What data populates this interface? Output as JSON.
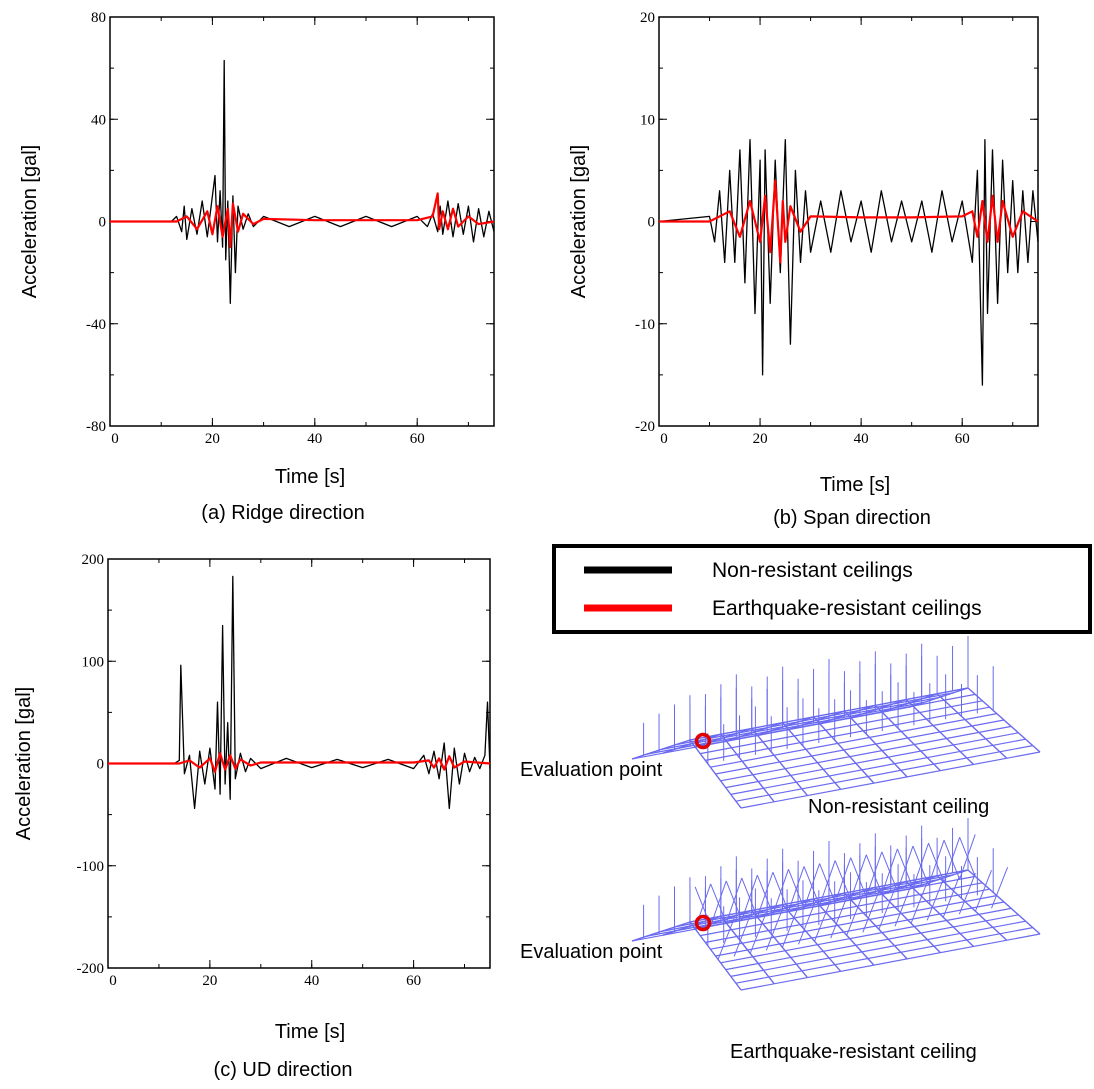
{
  "colors": {
    "non_resistant": "#000000",
    "resistant": "#ff0000",
    "model": "#6a6af0",
    "marker": "#e00000"
  },
  "chart_data": [
    {
      "type": "line",
      "caption": "(a) Ridge direction",
      "xlabel": "Time [s]",
      "ylabel": "Acceleration [gal]",
      "xlim": [
        0,
        75
      ],
      "ylim": [
        -80,
        80
      ],
      "xticks": [
        0,
        20,
        40,
        60
      ],
      "yticks": [
        -80,
        -40,
        0,
        40,
        80
      ],
      "series": [
        {
          "name": "Non-resistant ceilings",
          "color": "#000000",
          "x": [
            0,
            12,
            13,
            14,
            14.5,
            15,
            16,
            17,
            18,
            19,
            20,
            20.5,
            21,
            21.5,
            22,
            22.3,
            22.6,
            23,
            23.5,
            24,
            24.5,
            25,
            26,
            27,
            28,
            30,
            35,
            40,
            45,
            50,
            55,
            60,
            62,
            63,
            64,
            64.5,
            65,
            66,
            67,
            68,
            69,
            70,
            71,
            72,
            73,
            74,
            75
          ],
          "y": [
            0,
            0,
            2,
            -4,
            6,
            -7,
            5,
            -5,
            8,
            -6,
            10,
            18,
            -8,
            12,
            -10,
            63,
            -15,
            8,
            -32,
            10,
            -20,
            6,
            -3,
            3,
            -2,
            2,
            -2,
            2,
            -2,
            2,
            -2,
            2,
            -2,
            3,
            -4,
            6,
            -5,
            8,
            -6,
            7,
            -5,
            6,
            -8,
            5,
            -6,
            4,
            -4
          ]
        },
        {
          "name": "Earthquake-resistant ceilings",
          "color": "#ff0000",
          "x": [
            0,
            13,
            15,
            17,
            19,
            20,
            21,
            22,
            23,
            23.5,
            24,
            25,
            26,
            28,
            30,
            40,
            50,
            60,
            63,
            64,
            64.3,
            65,
            66,
            67,
            68,
            70,
            72,
            75
          ],
          "y": [
            0,
            0,
            2,
            -3,
            4,
            -5,
            6,
            -6,
            5,
            -10,
            7,
            -4,
            3,
            -1,
            1,
            0.5,
            0.5,
            0.5,
            2,
            11,
            -3,
            4,
            -3,
            5,
            -2,
            2,
            -1,
            0
          ]
        }
      ]
    },
    {
      "type": "line",
      "caption": "(b) Span direction",
      "xlabel": "Time [s]",
      "ylabel": "Acceleration [gal]",
      "xlim": [
        0,
        75
      ],
      "ylim": [
        -20,
        20
      ],
      "xticks": [
        0,
        20,
        40,
        60
      ],
      "yticks": [
        -20,
        -10,
        0,
        10,
        20
      ],
      "series": [
        {
          "name": "Non-resistant ceilings",
          "color": "#000000",
          "x": [
            0,
            10,
            11,
            12,
            13,
            14,
            15,
            16,
            17,
            18,
            19,
            20,
            20.5,
            21,
            22,
            23,
            24,
            25,
            26,
            27,
            28,
            29,
            30,
            32,
            34,
            36,
            38,
            40,
            42,
            44,
            46,
            48,
            50,
            52,
            54,
            56,
            58,
            60,
            62,
            63,
            64,
            64.5,
            65,
            66,
            67,
            68,
            69,
            70,
            71,
            72,
            73,
            74,
            75
          ],
          "y": [
            0,
            0.5,
            -2,
            3,
            -4,
            5,
            -4,
            7,
            -6,
            8,
            -9,
            6,
            -15,
            7,
            -8,
            6,
            -5,
            8,
            -12,
            5,
            -4,
            3,
            -3,
            2,
            -3,
            3,
            -2,
            2,
            -3,
            3,
            -2,
            2,
            -2,
            2,
            -3,
            3,
            -2,
            2,
            -4,
            5,
            -16,
            8,
            -9,
            7,
            -8,
            6,
            -5,
            4,
            -5,
            3,
            -4,
            3,
            -2
          ]
        },
        {
          "name": "Earthquake-resistant ceilings",
          "color": "#ff0000",
          "x": [
            0,
            10,
            14,
            16,
            18,
            20,
            21,
            22,
            23,
            24,
            24.5,
            25,
            26,
            28,
            30,
            40,
            50,
            60,
            62,
            63,
            64,
            65,
            66,
            67,
            68,
            70,
            72,
            75
          ],
          "y": [
            0,
            0,
            1,
            -1.5,
            2,
            -2,
            2.5,
            -3,
            4,
            -4,
            2,
            -2,
            1.5,
            -1,
            0.5,
            0.4,
            0.4,
            0.5,
            1,
            -1.5,
            2,
            -2,
            2.5,
            -2,
            2,
            -1.5,
            1,
            0
          ]
        }
      ]
    },
    {
      "type": "line",
      "caption": "(c) UD direction",
      "xlabel": "Time [s]",
      "ylabel": "Acceleration [gal]",
      "xlim": [
        0,
        75
      ],
      "ylim": [
        -200,
        200
      ],
      "xticks": [
        0,
        20,
        40,
        60
      ],
      "yticks": [
        -200,
        -100,
        0,
        100,
        200
      ],
      "series": [
        {
          "name": "Non-resistant ceilings",
          "color": "#000000",
          "x": [
            0,
            13,
            14,
            14.3,
            15,
            16,
            17,
            18,
            19,
            20,
            21,
            21.5,
            22,
            22.5,
            23,
            23.5,
            24,
            24.5,
            25,
            26,
            27,
            28,
            30,
            35,
            40,
            45,
            50,
            55,
            60,
            62,
            63,
            64,
            65,
            66,
            67,
            68,
            69,
            70,
            71,
            72,
            73,
            74,
            74.5,
            75
          ],
          "y": [
            0,
            0,
            3,
            96,
            -10,
            8,
            -44,
            12,
            -20,
            15,
            -25,
            60,
            -30,
            135,
            -20,
            40,
            -35,
            183,
            -15,
            10,
            -8,
            5,
            -5,
            5,
            -4,
            4,
            -4,
            4,
            -5,
            8,
            -10,
            12,
            -15,
            20,
            -44,
            15,
            -20,
            10,
            -8,
            6,
            -5,
            8,
            60,
            -5
          ]
        },
        {
          "name": "Earthquake-resistant ceilings",
          "color": "#ff0000",
          "x": [
            0,
            14,
            16,
            18,
            20,
            21,
            22,
            23,
            24,
            25,
            26,
            28,
            30,
            40,
            50,
            60,
            63,
            64,
            65,
            66,
            67,
            68,
            70,
            75
          ],
          "y": [
            0,
            0,
            3,
            -4,
            5,
            -8,
            10,
            -6,
            8,
            -5,
            4,
            -2,
            1,
            1,
            1,
            1,
            3,
            -4,
            5,
            -6,
            7,
            -4,
            2,
            0
          ]
        }
      ]
    }
  ],
  "legend": {
    "items": [
      "Non-resistant ceilings",
      "Earthquake-resistant ceilings"
    ]
  },
  "models": [
    {
      "label": "Non-resistant ceiling",
      "point_label": "Evaluation point"
    },
    {
      "label": "Earthquake-resistant ceiling",
      "point_label": "Evaluation point"
    }
  ]
}
